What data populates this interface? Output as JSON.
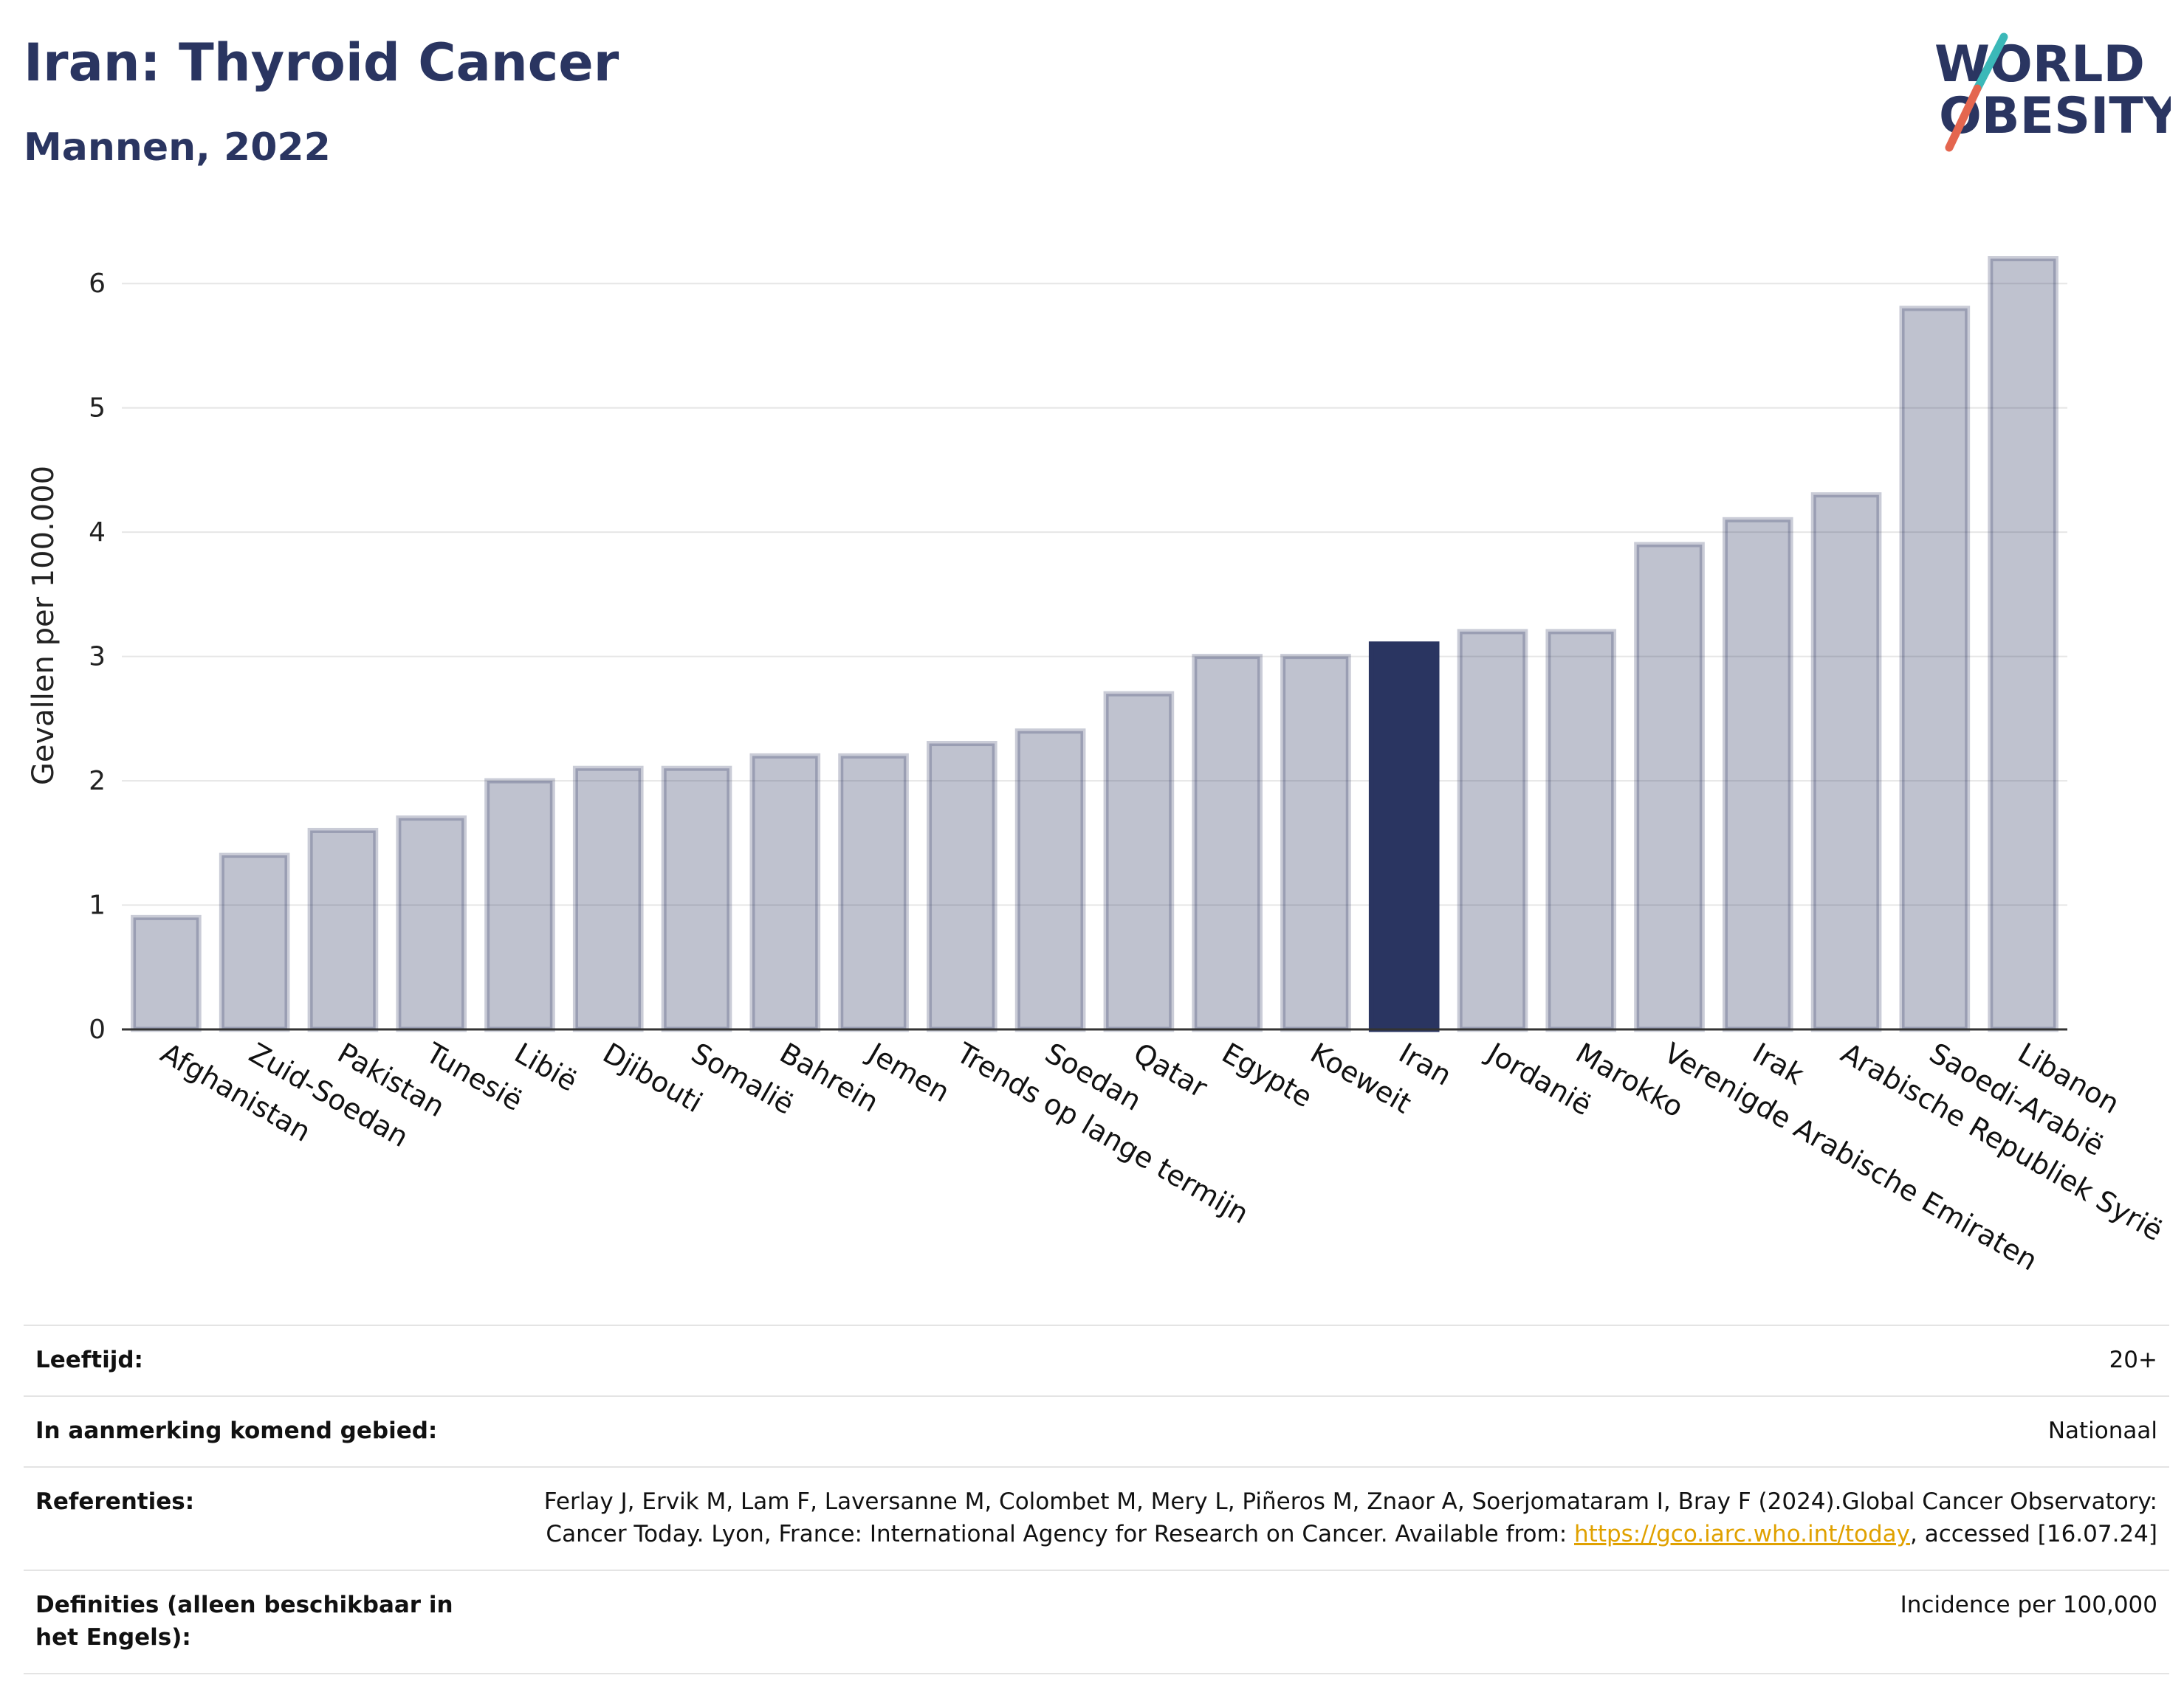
{
  "header": {
    "title": "Iran: Thyroid Cancer",
    "subtitle": "Mannen, 2022"
  },
  "logo": {
    "line1": "WORLD",
    "line2": "OBESITY",
    "colors": {
      "text": "#2a3561",
      "slash_teal": "#3bb8b8",
      "slash_red": "#e4664f"
    }
  },
  "chart_data": {
    "type": "bar",
    "title": "",
    "xlabel": "",
    "ylabel": "Gevallen per 100.000",
    "ylim": [
      0,
      6.5
    ],
    "yticks": [
      0,
      1,
      2,
      3,
      4,
      5,
      6
    ],
    "grid": true,
    "highlight": "Iran",
    "colors": {
      "bar": "#2a3561",
      "bar_fill_opacity": 0.3,
      "highlight": "#2a3561"
    },
    "categories": [
      "Afghanistan",
      "Zuid-Soedan",
      "Pakistan",
      "Tunesië",
      "Libië",
      "Djibouti",
      "Somalië",
      "Bahrein",
      "Jemen",
      "Trends op lange termijn",
      "Soedan",
      "Qatar",
      "Egypte",
      "Koeweit",
      "Iran",
      "Jordanië",
      "Marokko",
      "Verenigde Arabische Emiraten",
      "Irak",
      "Arabische Republiek Syrië",
      "Saoedi-Arabië",
      "Libanon"
    ],
    "values": [
      0.9,
      1.4,
      1.6,
      1.7,
      2.0,
      2.1,
      2.1,
      2.2,
      2.2,
      2.3,
      2.4,
      2.7,
      3.0,
      3.0,
      3.1,
      3.2,
      3.2,
      3.9,
      4.1,
      4.3,
      5.8,
      6.2
    ]
  },
  "info": [
    {
      "label": "Leeftijd:",
      "value": "20+"
    },
    {
      "label": "In aanmerking komend gebied:",
      "value": "Nationaal"
    },
    {
      "label": "Referenties:",
      "value_pre": "Ferlay J, Ervik M, Lam F, Laversanne M, Colombet M, Mery L, Piñeros M, Znaor A, Soerjomataram I, Bray F (2024).Global Cancer Observatory: Cancer Today. Lyon, France: International Agency for Research on Cancer. Available from: ",
      "link": "https://gco.iarc.who.int/today",
      "value_post": ", accessed [16.07.24]"
    },
    {
      "label": "Definities (alleen beschikbaar in het Engels):",
      "value": "Incidence per 100,000"
    }
  ]
}
